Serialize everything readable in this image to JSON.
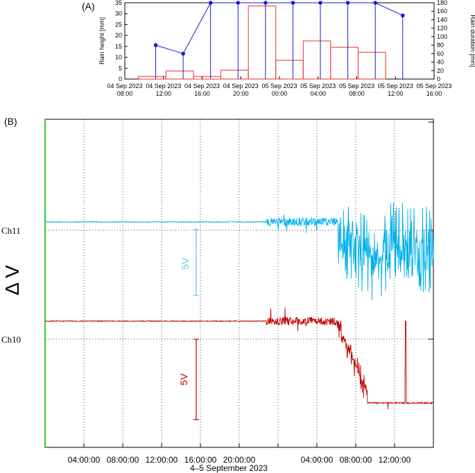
{
  "panel_labels": {
    "a": "(A)",
    "b": "(B)"
  },
  "chart_data": [
    {
      "type": "bar",
      "panel": "A",
      "ylabel": "Rain height [mm]",
      "y2label": "Rain duration [min]",
      "ylim": [
        0,
        35
      ],
      "y2lim": [
        0,
        180
      ],
      "yticks": [
        0,
        5,
        10,
        15,
        20,
        25,
        30,
        35
      ],
      "y2ticks": [
        0,
        20,
        40,
        60,
        80,
        100,
        120,
        140,
        160,
        180
      ],
      "xlim_hours": [
        0,
        32
      ],
      "xticks": [
        {
          "h": 0,
          "date": "04 Sep 2023",
          "time": "08:00"
        },
        {
          "h": 4,
          "date": "04 Sep 2023",
          "time": "12:00"
        },
        {
          "h": 8,
          "date": "04 Sep 2023",
          "time": "16:00"
        },
        {
          "h": 12,
          "date": "04 Sep 2023",
          "time": "20:00"
        },
        {
          "h": 16,
          "date": "05 Sep 2023",
          "time": "00:00"
        },
        {
          "h": 20,
          "date": "05 Sep 2023",
          "time": "04:00"
        },
        {
          "h": 24,
          "date": "05 Sep 2023",
          "time": "08:00"
        },
        {
          "h": 28,
          "date": "05 Sep 2023",
          "time": "12:00"
        },
        {
          "h": 32,
          "date": "05 Sep 2023",
          "time": "16:00"
        }
      ],
      "bars_rain_height_mm": [
        {
          "start_h": 0,
          "end_h": 2,
          "value": 0
        },
        {
          "start_h": 2,
          "end_h": 6,
          "value": 1.2
        },
        {
          "start_h": 6,
          "end_h": 10,
          "value": 3.7
        },
        {
          "start_h": 10,
          "end_h": 14,
          "value": 1.2
        },
        {
          "start_h": 14,
          "end_h": 18,
          "value": 4.1
        },
        {
          "start_h": 18,
          "end_h": 22,
          "value": 33.5
        },
        {
          "start_h": 22,
          "end_h": 26,
          "value": 8.6
        },
        {
          "start_h": 26,
          "end_h": 30,
          "value": 17.5
        },
        {
          "start_h": 30,
          "end_h": 34,
          "value": 14.6
        },
        {
          "start_h": 34,
          "end_h": 38,
          "value": 12.3
        }
      ],
      "duration_points_min": [
        {
          "h": 4.5,
          "value": 80
        },
        {
          "h": 8.5,
          "value": 60
        },
        {
          "h": 12.5,
          "value": 180
        },
        {
          "h": 16.5,
          "value": 180
        },
        {
          "h": 20.5,
          "value": 180
        },
        {
          "h": 24.5,
          "value": 180
        },
        {
          "h": 28.5,
          "value": 180
        },
        {
          "h": 32.5,
          "value": 180
        },
        {
          "h": 36.5,
          "value": 180
        },
        {
          "h": 40.5,
          "value": 150
        }
      ]
    },
    {
      "type": "line",
      "panel": "B",
      "ylabel": "Δ V",
      "xlabel": "4–5 September 2023",
      "xticks": [
        "04:00:00",
        "08:00:00",
        "12:00:00",
        "16:00:00",
        "20:00:00",
        "04:00:00",
        "08:00:00",
        "12:00:00"
      ],
      "xtick_hours": [
        4,
        8,
        12,
        16,
        20,
        28,
        32,
        36
      ],
      "xlim_hours": [
        0,
        40
      ],
      "channels": [
        {
          "name": "Ch11",
          "color": "#00b0e8",
          "scale_label": "5V"
        },
        {
          "name": "Ch10",
          "color": "#c00000",
          "scale_label": "5V"
        }
      ]
    }
  ]
}
